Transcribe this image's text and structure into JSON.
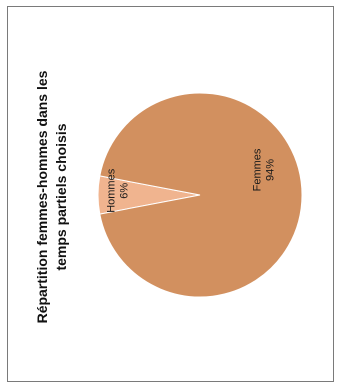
{
  "chart_data": {
    "type": "pie",
    "title_lines": [
      "Répartition femmes-hommes dans les",
      "temps partiels choisis"
    ],
    "slices": [
      {
        "name": "Femmes",
        "label": "94%",
        "value": 94,
        "color": "#d2905f"
      },
      {
        "name": "Hommes",
        "label": "6%",
        "value": 6,
        "color": "#f0b48f"
      }
    ],
    "orientation": "rotated -90deg"
  }
}
